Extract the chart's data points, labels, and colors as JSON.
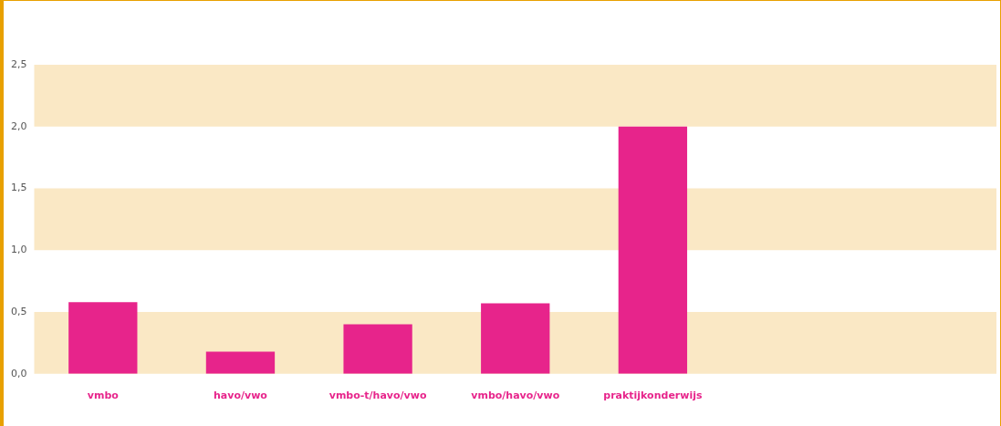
{
  "chart_data": {
    "type": "bar",
    "categories": [
      "vmbo",
      "havo/vwo",
      "vmbo-t/havo/vwo",
      "vmbo/havo/vwo",
      "praktijkonderwijs",
      null,
      null
    ],
    "values": [
      0.58,
      0.18,
      0.4,
      0.57,
      2.0,
      null,
      null
    ],
    "color": "#e7248b",
    "ylim": [
      0,
      2.5
    ],
    "yticks": [
      {
        "value": 0,
        "label": "0,0"
      },
      {
        "value": 0.5,
        "label": "0,5"
      },
      {
        "value": 1,
        "label": "1,0"
      },
      {
        "value": 1.5,
        "label": "1,5"
      },
      {
        "value": 2,
        "label": "2,0"
      },
      {
        "value": 2.5,
        "label": "2,5"
      }
    ],
    "bands": [
      {
        "axis": "y",
        "from": 0,
        "to": 0.5,
        "color": "#fae8c5"
      },
      {
        "axis": "y",
        "from": 1,
        "to": 1.5,
        "color": "#fae8c5"
      },
      {
        "axis": "y",
        "from": 2,
        "to": 2.5,
        "color": "#fae8c5"
      }
    ],
    "grid": false
  }
}
